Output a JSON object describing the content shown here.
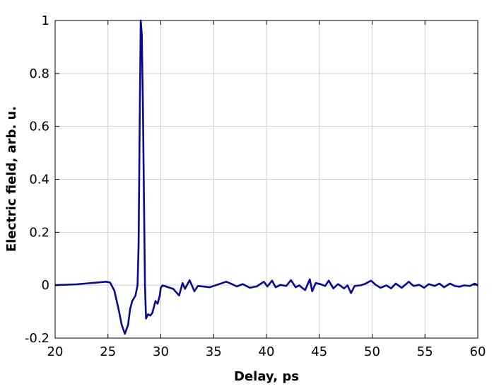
{
  "chart_data": {
    "type": "line",
    "title": "",
    "xlabel": "Delay, ps",
    "ylabel": "Electric field, arb. u.",
    "xlim": [
      20,
      60
    ],
    "ylim": [
      -0.2,
      1
    ],
    "xticks": [
      "20",
      "25",
      "30",
      "35",
      "40",
      "45",
      "50",
      "55",
      "60"
    ],
    "yticks": [
      "-0.2",
      "0",
      "0.2",
      "0.4",
      "0.6",
      "0.8",
      "1"
    ],
    "grid": true,
    "line_color": "#0a0a8c",
    "series": [
      {
        "x": [
          20,
          22,
          24,
          24.8,
          25.2,
          25.6,
          26.0,
          26.3,
          26.6,
          26.9,
          27.1,
          27.3,
          27.6,
          27.8,
          27.9,
          28.0,
          28.1,
          28.2,
          28.3,
          28.4,
          28.5,
          28.6,
          28.8,
          29.0,
          29.2,
          29.5,
          29.7,
          29.9,
          30.0,
          30.17,
          30.5,
          30.84,
          31.17,
          31.73,
          32.06,
          32.29,
          32.73,
          33.18,
          33.51,
          33.96,
          34.63,
          35.52,
          36.19,
          36.63,
          37.19,
          37.75,
          38.42,
          39.08,
          39.75,
          40.09,
          40.53,
          40.87,
          41.32,
          41.87,
          42.32,
          42.76,
          43.1,
          43.66,
          44.1,
          44.33,
          44.66,
          45.1,
          45.55,
          45.89,
          46.33,
          46.78,
          47.34,
          47.67,
          48.0,
          48.34,
          48.9,
          49.34,
          49.9,
          50.35,
          50.79,
          51.35,
          51.8,
          52.24,
          52.8,
          53.47,
          53.91,
          54.47,
          54.92,
          55.36,
          55.92,
          56.37,
          56.81,
          57.37,
          57.81,
          58.26,
          58.7,
          59.26,
          59.71,
          60.0
        ],
        "y": [
          0,
          0.003,
          0.01,
          0.013,
          0.01,
          -0.02,
          -0.09,
          -0.15,
          -0.184,
          -0.15,
          -0.09,
          -0.06,
          -0.04,
          0.0,
          0.15,
          0.6,
          1.0,
          0.95,
          0.7,
          0.35,
          0.0,
          -0.126,
          -0.11,
          -0.115,
          -0.105,
          -0.06,
          -0.07,
          -0.04,
          -0.01,
          -0.001,
          -0.005,
          -0.01,
          -0.014,
          -0.039,
          0.008,
          -0.014,
          0.019,
          -0.023,
          -0.003,
          -0.005,
          -0.008,
          0.004,
          0.013,
          0.006,
          -0.005,
          0.004,
          -0.01,
          -0.005,
          0.013,
          -0.005,
          0.017,
          -0.008,
          0.001,
          -0.003,
          0.019,
          -0.008,
          -0.001,
          -0.019,
          0.022,
          -0.023,
          0.008,
          0.004,
          -0.003,
          0.017,
          -0.012,
          0.004,
          -0.012,
          -0.001,
          -0.03,
          -0.003,
          -0.001,
          0.005,
          0.017,
          0.001,
          -0.01,
          -0.001,
          -0.012,
          0.006,
          -0.01,
          0.013,
          -0.003,
          0.001,
          -0.01,
          0.004,
          -0.003,
          0.006,
          -0.008,
          0.006,
          -0.003,
          -0.006,
          -0.001,
          -0.003,
          0.006,
          -0.001
        ]
      }
    ]
  }
}
